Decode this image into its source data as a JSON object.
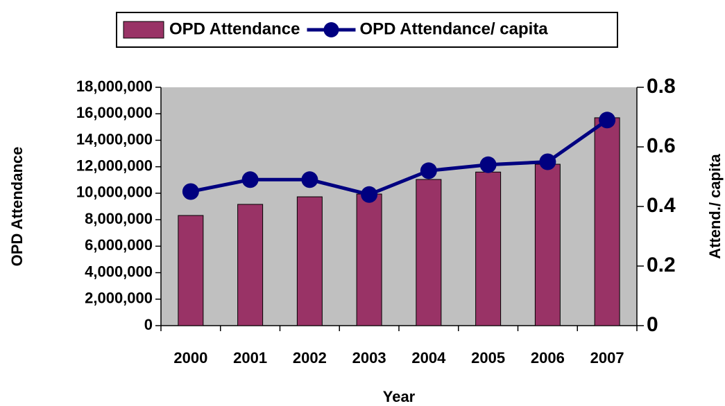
{
  "chart_data": {
    "type": "bar-line",
    "x_label": "Year",
    "y_label": "OPD Attendance",
    "y2_label": "Attend./ capita",
    "categories": [
      "2000",
      "2001",
      "2002",
      "2003",
      "2004",
      "2005",
      "2006",
      "2007"
    ],
    "series": [
      {
        "name": "OPD Attendance",
        "type": "bar",
        "color": "#993366",
        "values": [
          8320000,
          9160000,
          9730000,
          9940000,
          11040000,
          11600000,
          12190000,
          15700000
        ]
      },
      {
        "name": "OPD Attendance/ capita",
        "type": "line",
        "axis": "y2",
        "color": "#000080",
        "values": [
          0.45,
          0.49,
          0.49,
          0.44,
          0.52,
          0.54,
          0.55,
          0.69
        ]
      }
    ],
    "ylim": [
      0,
      18000000
    ],
    "yticks": [
      0,
      {
        "value": 2000000,
        "label": "2,000,000"
      },
      {
        "value": 4000000,
        "label": "4,000,000"
      },
      {
        "value": 6000000,
        "label": "6,000,000"
      },
      {
        "value": 8000000,
        "label": "8,000,000"
      },
      {
        "value": 10000000,
        "label": "10,000,000"
      },
      {
        "value": 12000000,
        "label": "12,000,000"
      },
      {
        "value": 14000000,
        "label": "14,000,000"
      },
      {
        "value": 16000000,
        "label": "16,000,000"
      },
      {
        "value": 18000000,
        "label": "18,000,000"
      }
    ],
    "y2lim": [
      0,
      0.8
    ],
    "y2ticks": [
      0,
      0.2,
      0.4,
      0.6,
      0.8
    ],
    "legend": "top",
    "plot_background": "#c0c0c0"
  }
}
